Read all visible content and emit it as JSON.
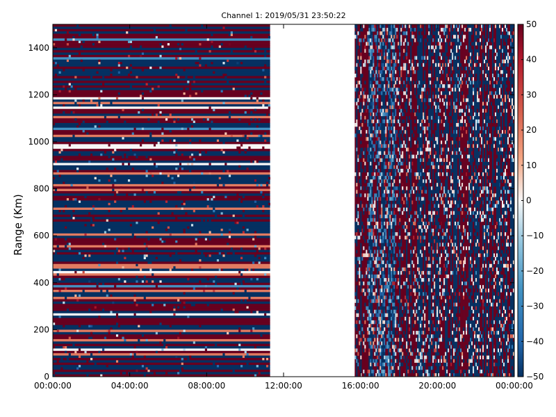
{
  "chart_data": {
    "type": "heatmap",
    "title": "Channel 1: 2019/05/31 23:50:22",
    "xlabel": "",
    "ylabel": "Range (Km)",
    "x_ticks": [
      "00:00:00",
      "04:00:00",
      "08:00:00",
      "12:00:00",
      "16:00:00",
      "20:00:00",
      "00:00:00"
    ],
    "x_range_hours": [
      0,
      24
    ],
    "y_ticks": [
      0,
      200,
      400,
      600,
      800,
      1000,
      1200,
      1400
    ],
    "ylim": [
      0,
      1500
    ],
    "colorbar": {
      "colormap": "RdBu_r",
      "ticks": [
        50,
        40,
        30,
        20,
        10,
        0,
        -10,
        -20,
        -30,
        -40,
        -50
      ],
      "range": [
        -50,
        50
      ],
      "low_color": "#053061",
      "mid_color": "#f7f7f7",
      "high_color": "#67001f"
    },
    "data_segments": [
      {
        "name": "segment-1",
        "start_hours": 0.0,
        "end_hours": 11.3
      },
      {
        "name": "segment-2",
        "start_hours": 15.7,
        "end_hours": 24.0
      }
    ],
    "gap_hours": [
      11.3,
      15.7
    ]
  }
}
